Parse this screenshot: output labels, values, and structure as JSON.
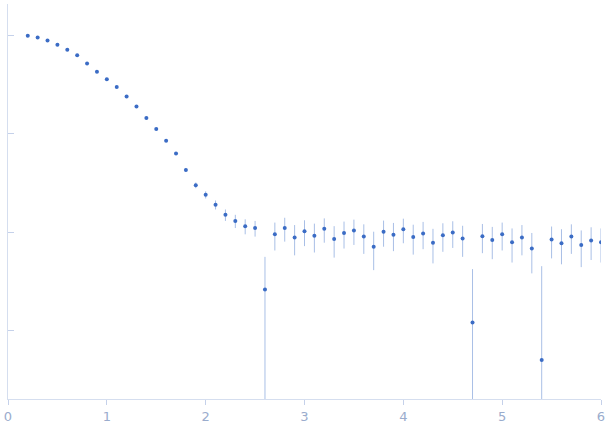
{
  "chart_data": {
    "type": "scatter",
    "x": [
      0.2,
      0.3,
      0.4,
      0.5,
      0.6,
      0.7,
      0.8,
      0.9,
      1.0,
      1.1,
      1.2,
      1.3,
      1.4,
      1.5,
      1.6,
      1.7,
      1.8,
      1.9,
      2.0,
      2.1,
      2.2,
      2.3,
      2.4,
      2.5,
      2.6,
      2.7,
      2.8,
      2.9,
      3.0,
      3.1,
      3.2,
      3.3,
      3.4,
      3.5,
      3.6,
      3.7,
      3.8,
      3.9,
      4.0,
      4.1,
      4.2,
      4.3,
      4.4,
      4.5,
      4.6,
      4.7,
      4.8,
      4.9,
      5.0,
      5.1,
      5.2,
      5.3,
      5.4,
      5.5,
      5.6,
      5.7,
      5.8,
      5.9,
      6.0
    ],
    "values": [
      1.0,
      0.955,
      0.89,
      0.81,
      0.72,
      0.63,
      0.52,
      0.43,
      0.36,
      0.3,
      0.24,
      0.19,
      0.145,
      0.112,
      0.085,
      0.063,
      0.043,
      0.03,
      0.024,
      0.019,
      0.015,
      0.013,
      0.0115,
      0.011,
      0.0026,
      0.0095,
      0.011,
      0.0088,
      0.0102,
      0.0092,
      0.0108,
      0.0085,
      0.0098,
      0.0104,
      0.009,
      0.0071,
      0.0101,
      0.0094,
      0.0107,
      0.0089,
      0.0097,
      0.0078,
      0.0093,
      0.0099,
      0.0086,
      0.0012,
      0.0091,
      0.0083,
      0.0095,
      0.0079,
      0.0088,
      0.0068,
      0.0005,
      0.0084,
      0.0077,
      0.009,
      0.0074,
      0.0082,
      0.0079
    ],
    "errors": [
      0.005,
      0.005,
      0.004,
      0.004,
      0.004,
      0.003,
      0.003,
      0.003,
      0.003,
      0.002,
      0.002,
      0.002,
      0.002,
      0.002,
      0.002,
      0.002,
      0.002,
      0.002,
      0.002,
      0.002,
      0.002,
      0.002,
      0.002,
      0.002,
      0.003,
      0.003,
      0.003,
      0.003,
      0.003,
      0.003,
      0.003,
      0.003,
      0.003,
      0.003,
      0.003,
      0.003,
      0.003,
      0.003,
      0.003,
      0.003,
      0.003,
      0.003,
      0.003,
      0.003,
      0.003,
      0.003,
      0.003,
      0.003,
      0.003,
      0.003,
      0.003,
      0.003,
      0.004,
      0.003,
      0.003,
      0.003,
      0.003,
      0.003,
      0.003
    ],
    "color": "#3b6cc5",
    "marker": "circle",
    "xlim": [
      0,
      6
    ],
    "xticks": [
      0,
      1,
      2,
      3,
      4,
      5,
      6
    ],
    "ylim": [
      0.0002,
      2.1
    ],
    "yticks": [
      0.001,
      0.01,
      0.1,
      1
    ],
    "log": "y",
    "grid": false,
    "tick_labels": "x"
  }
}
